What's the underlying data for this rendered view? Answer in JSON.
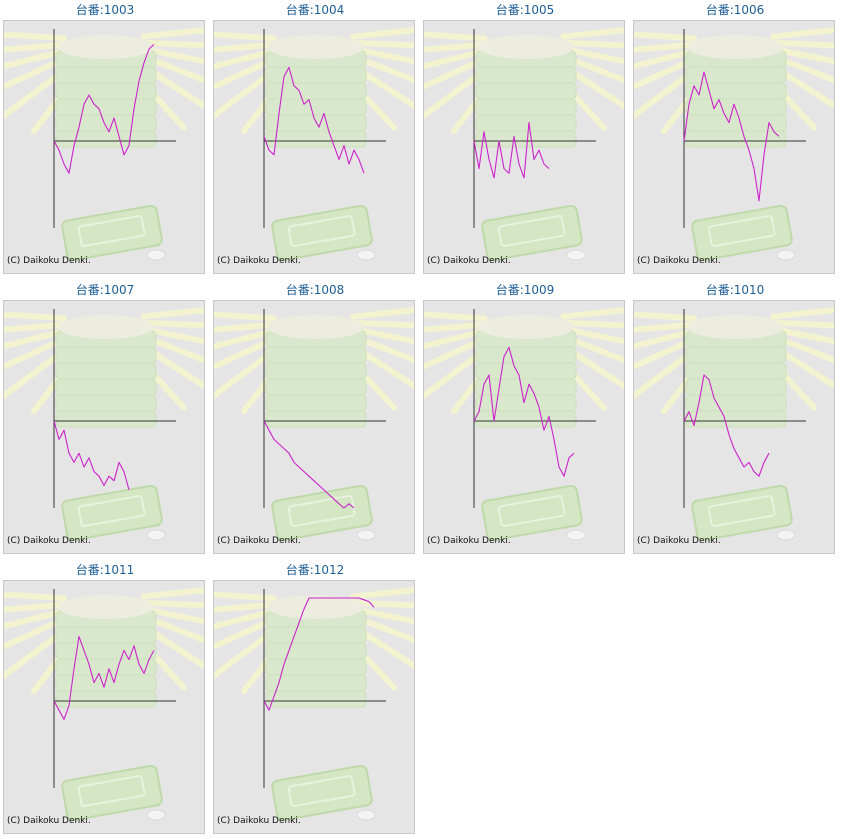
{
  "colors": {
    "line": "#cc22cc",
    "axis": "#333333",
    "title": "#1f5e96",
    "panel": "#e5e5e5"
  },
  "copyright": "(C) Daikoku Denki.",
  "chart_data": [
    {
      "type": "line",
      "title": "台番:1003",
      "x": [
        0,
        5,
        10,
        15,
        20,
        25,
        30,
        35,
        40,
        45,
        50,
        55,
        60,
        65,
        70,
        75,
        80,
        85,
        90,
        95,
        100
      ],
      "y": [
        0,
        -10,
        -25,
        -35,
        -5,
        15,
        40,
        50,
        40,
        35,
        20,
        10,
        25,
        5,
        -15,
        -5,
        35,
        65,
        85,
        100,
        105
      ]
    },
    {
      "type": "line",
      "title": "台番:1004",
      "x": [
        0,
        5,
        10,
        15,
        20,
        25,
        30,
        35,
        40,
        45,
        50,
        55,
        60,
        65,
        70,
        75,
        80,
        85,
        90,
        95,
        100
      ],
      "y": [
        5,
        -10,
        -15,
        30,
        70,
        80,
        60,
        55,
        40,
        45,
        25,
        15,
        30,
        10,
        -5,
        -20,
        -5,
        -25,
        -10,
        -20,
        -35
      ]
    },
    {
      "type": "line",
      "title": "台番:1005",
      "x": [
        0,
        5,
        10,
        15,
        20,
        25,
        30,
        35,
        40,
        45,
        50,
        55,
        60,
        65,
        70,
        75
      ],
      "y": [
        0,
        -30,
        10,
        -20,
        -40,
        0,
        -30,
        -35,
        5,
        -25,
        -40,
        20,
        -20,
        -10,
        -25,
        -30
      ]
    },
    {
      "type": "line",
      "title": "台番:1006",
      "x": [
        0,
        5,
        10,
        15,
        20,
        25,
        30,
        35,
        40,
        45,
        50,
        55,
        60,
        65,
        70,
        75,
        80,
        85,
        90,
        95
      ],
      "y": [
        0,
        40,
        60,
        50,
        75,
        55,
        35,
        45,
        30,
        20,
        40,
        25,
        5,
        -10,
        -30,
        -65,
        -15,
        20,
        10,
        5
      ]
    },
    {
      "type": "line",
      "title": "台番:1007",
      "x": [
        0,
        5,
        10,
        15,
        20,
        25,
        30,
        35,
        40,
        45,
        50,
        55,
        60,
        65,
        70,
        75
      ],
      "y": [
        0,
        -20,
        -10,
        -35,
        -45,
        -35,
        -50,
        -40,
        -55,
        -60,
        -70,
        -60,
        -65,
        -45,
        -55,
        -75
      ]
    },
    {
      "type": "line",
      "title": "台番:1008",
      "x": [
        0,
        5,
        10,
        15,
        20,
        25,
        30,
        35,
        40,
        45,
        50,
        55,
        60,
        65,
        70,
        75,
        80,
        85,
        90
      ],
      "y": [
        0,
        -10,
        -20,
        -25,
        -30,
        -35,
        -45,
        -50,
        -55,
        -60,
        -65,
        -70,
        -75,
        -80,
        -85,
        -90,
        -95,
        -90,
        -100
      ]
    },
    {
      "type": "line",
      "title": "台番:1009",
      "x": [
        0,
        5,
        10,
        15,
        20,
        25,
        30,
        35,
        40,
        45,
        50,
        55,
        60,
        65,
        70,
        75,
        80,
        85,
        90,
        95,
        100
      ],
      "y": [
        0,
        10,
        40,
        50,
        0,
        35,
        70,
        80,
        60,
        50,
        20,
        40,
        30,
        15,
        -10,
        5,
        -20,
        -50,
        -60,
        -40,
        -35
      ]
    },
    {
      "type": "line",
      "title": "台番:1010",
      "x": [
        0,
        5,
        10,
        15,
        20,
        25,
        30,
        35,
        40,
        45,
        50,
        55,
        60,
        65,
        70,
        75,
        80,
        85
      ],
      "y": [
        0,
        10,
        -5,
        20,
        50,
        45,
        25,
        15,
        5,
        -15,
        -30,
        -40,
        -50,
        -45,
        -55,
        -60,
        -45,
        -35
      ]
    },
    {
      "type": "line",
      "title": "台番:1011",
      "x": [
        0,
        5,
        10,
        15,
        20,
        25,
        30,
        35,
        40,
        45,
        50,
        55,
        60,
        65,
        70,
        75,
        80,
        85,
        90,
        95,
        100
      ],
      "y": [
        0,
        -10,
        -20,
        -5,
        35,
        70,
        55,
        40,
        20,
        30,
        15,
        35,
        20,
        40,
        55,
        45,
        60,
        40,
        30,
        45,
        55
      ]
    },
    {
      "type": "line",
      "title": "台番:1012",
      "x": [
        0,
        5,
        10,
        15,
        20,
        25,
        30,
        35,
        40,
        45,
        50,
        55,
        60,
        65,
        70,
        75,
        80,
        85,
        90,
        95,
        100,
        105,
        110
      ],
      "y": [
        0,
        -10,
        5,
        20,
        40,
        55,
        70,
        85,
        100,
        112,
        112,
        112,
        112,
        112,
        112,
        112,
        112,
        112,
        112,
        112,
        110,
        108,
        102
      ]
    }
  ]
}
